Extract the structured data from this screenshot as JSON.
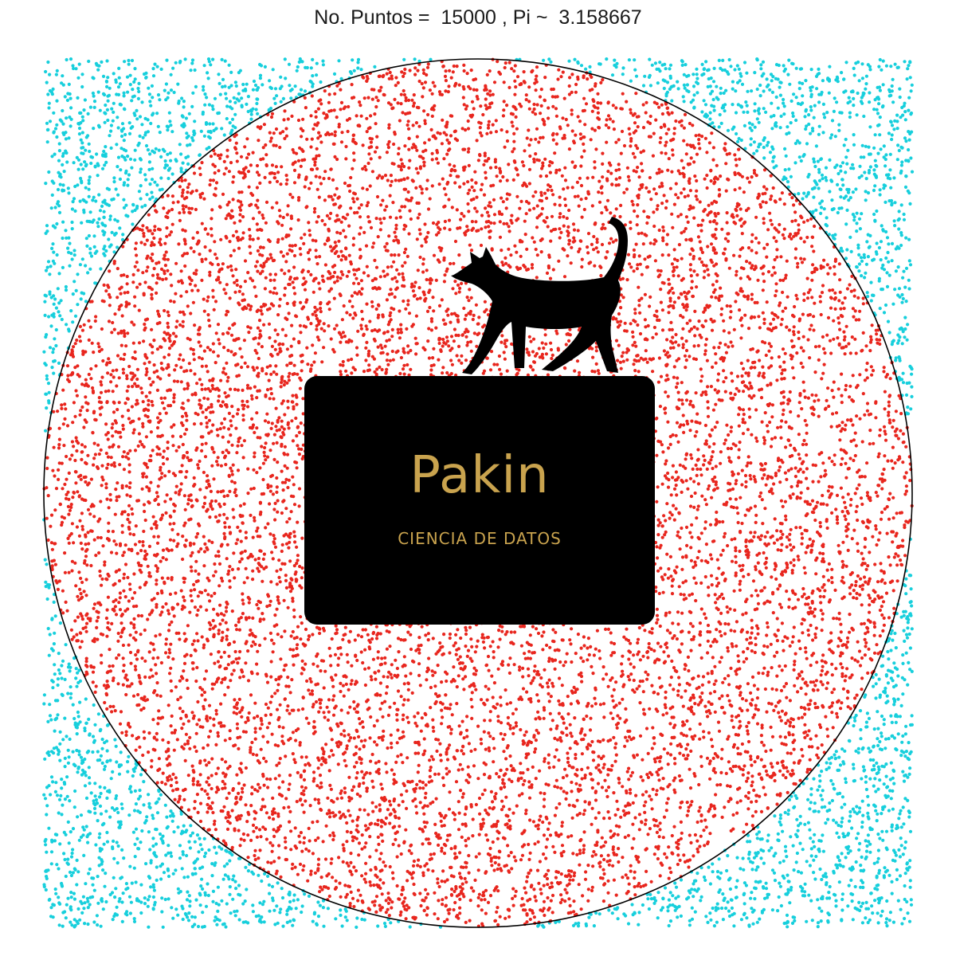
{
  "chart_data": {
    "type": "scatter",
    "title": "No. Puntos =  15000 , Pi ~  3.158667",
    "n_points": 15000,
    "pi_estimate": 3.158667,
    "xlim": [
      -1,
      1
    ],
    "ylim": [
      -1,
      1
    ],
    "circle_radius": 1,
    "inside_fraction": 0.789667,
    "grid": false,
    "axes_visible": false,
    "series": [
      {
        "region": "inside-circle",
        "color": "#e8261e"
      },
      {
        "region": "outside-circle",
        "color": "#17cfdc"
      }
    ],
    "circle_color": "#000000"
  },
  "logo": {
    "name": "Pakin",
    "tagline": "CIENCIA DE DATOS",
    "icon": "cat-icon",
    "text_color": "#c9a34e",
    "box_color": "#000000"
  }
}
